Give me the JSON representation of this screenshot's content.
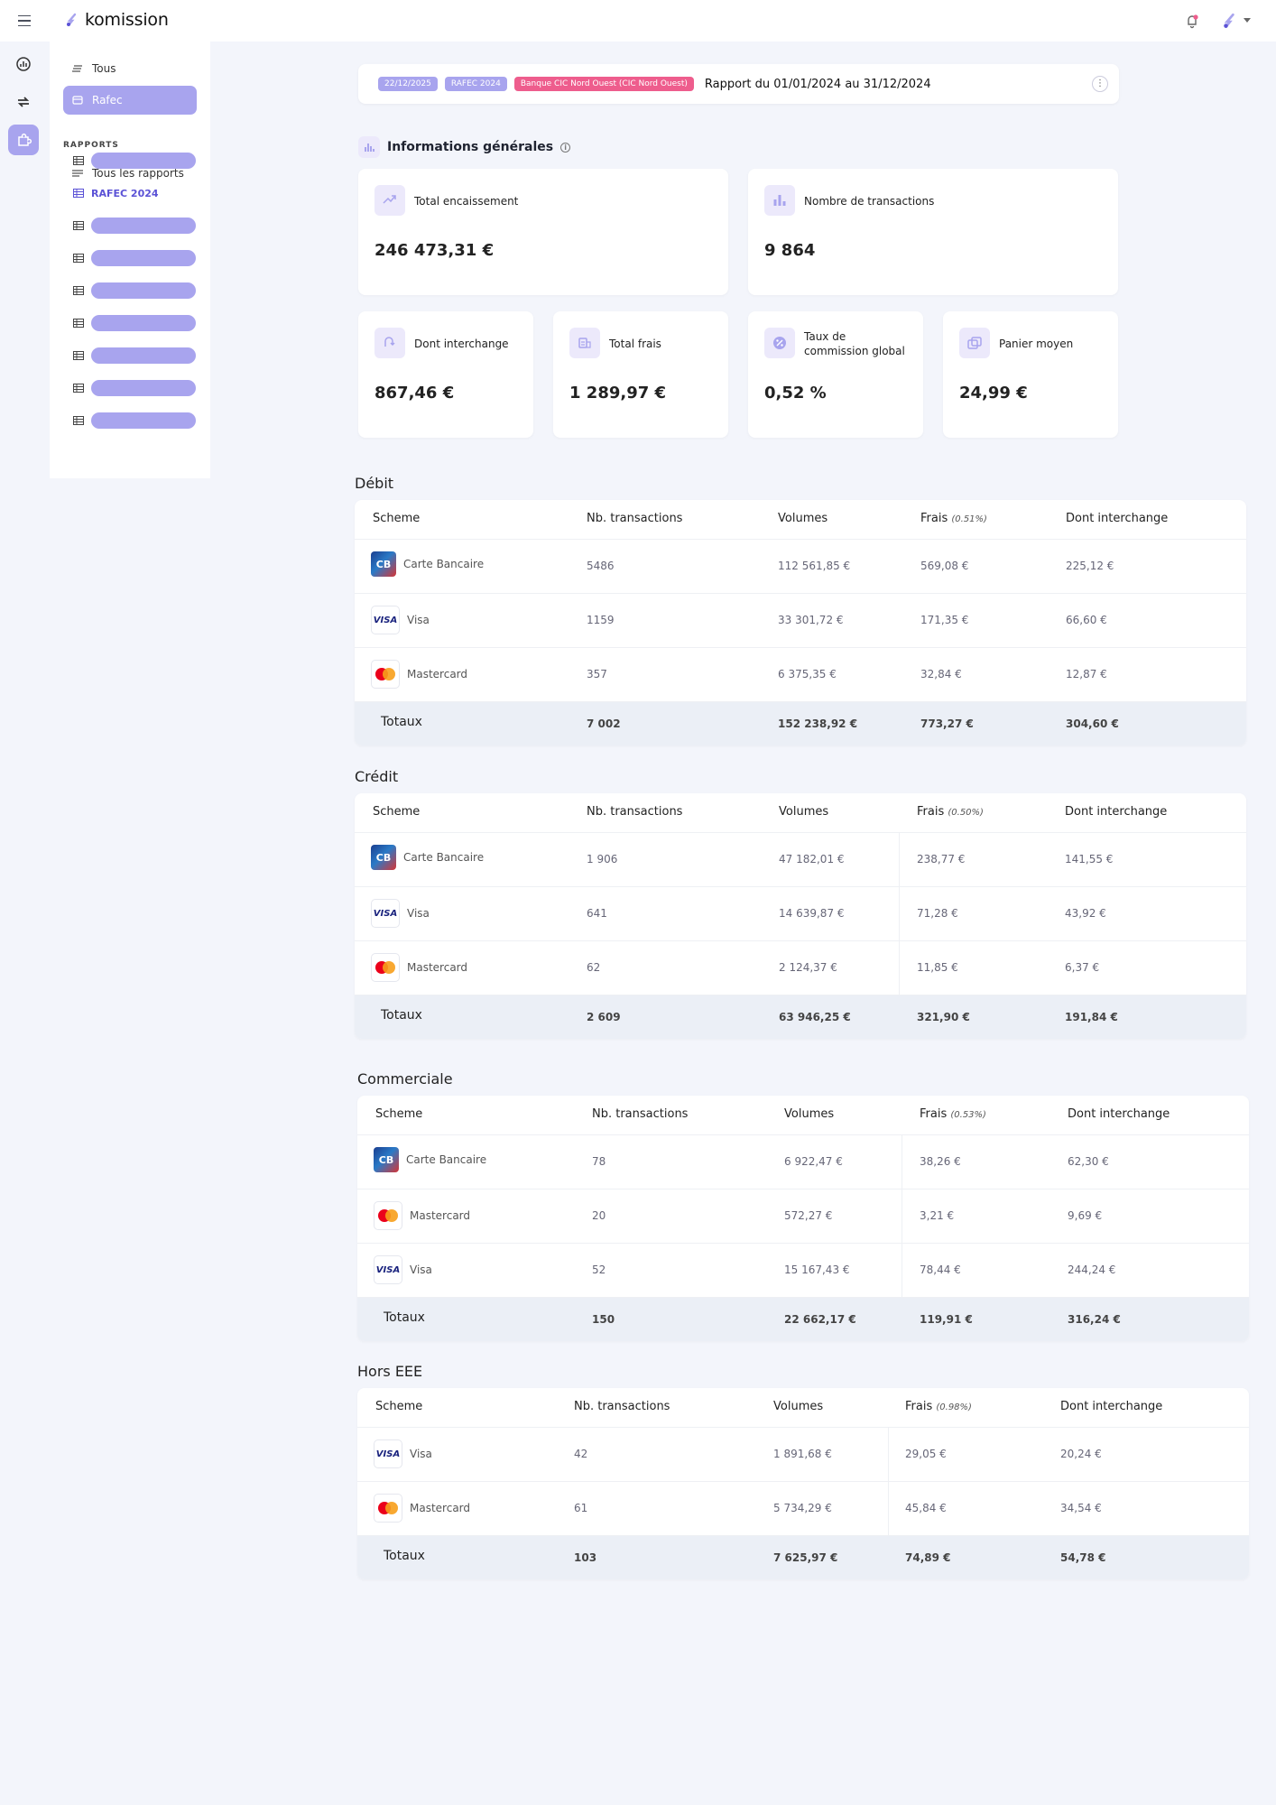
{
  "app": {
    "name": "komission"
  },
  "sidebar": {
    "items": [
      {
        "label": "Tous"
      },
      {
        "label": "Rafec"
      }
    ],
    "section_title": "RAPPORTS",
    "all_reports": "Tous les rapports",
    "active_report": "RAFEC 2024"
  },
  "header": {
    "badges": [
      "22/12/2025",
      "RAFEC 2024",
      "Banque CIC Nord Ouest (CIC Nord Ouest)"
    ],
    "title": "Rapport du 01/01/2024 au 31/12/2024",
    "menu_glyph": "⋮"
  },
  "general": {
    "title": "Informations générales",
    "info_glyph": "i",
    "cards": [
      {
        "label": "Total encaissement",
        "value": "246 473,31 €",
        "icon": "trend-up-icon"
      },
      {
        "label": "Nombre de transactions",
        "value": "9 864",
        "icon": "bar-chart-icon"
      },
      {
        "label": "Dont interchange",
        "value": "867,46 €",
        "icon": "exchange-icon"
      },
      {
        "label": "Total frais",
        "value": "1 289,97 €",
        "icon": "coins-icon"
      },
      {
        "label": "Taux de commission global",
        "value": "0,52 %",
        "icon": "percent-tag-icon"
      },
      {
        "label": "Panier moyen",
        "value": "24,99 €",
        "icon": "basket-icon"
      }
    ]
  },
  "tables": [
    {
      "title": "Débit",
      "headers": {
        "scheme": "Scheme",
        "nb": "Nb. transactions",
        "volumes": "Volumes",
        "frais": "Frais",
        "frais_rate": "(0.51%)",
        "interchange": "Dont interchange"
      },
      "rows": [
        {
          "scheme": "Carte Bancaire",
          "logo": "cb",
          "nb": "5486",
          "volumes": "112 561,85 €",
          "frais": "569,08 €",
          "interchange": "225,12 €"
        },
        {
          "scheme": "Visa",
          "logo": "visa",
          "nb": "1159",
          "volumes": "33 301,72 €",
          "frais": "171,35 €",
          "interchange": "66,60 €"
        },
        {
          "scheme": "Mastercard",
          "logo": "mc",
          "nb": "357",
          "volumes": "6 375,35 €",
          "frais": "32,84 €",
          "interchange": "12,87 €"
        }
      ],
      "totals": {
        "label": "Totaux",
        "nb": "7 002",
        "volumes": "152 238,92 €",
        "frais": "773,27 €",
        "interchange": "304,60 €"
      }
    },
    {
      "title": "Crédit",
      "headers": {
        "scheme": "Scheme",
        "nb": "Nb. transactions",
        "volumes": "Volumes",
        "frais": "Frais",
        "frais_rate": "(0.50%)",
        "interchange": "Dont interchange"
      },
      "rows": [
        {
          "scheme": "Carte Bancaire",
          "logo": "cb",
          "nb": "1 906",
          "volumes": "47 182,01 €",
          "frais": "238,77 €",
          "interchange": "141,55 €"
        },
        {
          "scheme": "Visa",
          "logo": "visa",
          "nb": "641",
          "volumes": "14 639,87 €",
          "frais": "71,28 €",
          "interchange": "43,92 €"
        },
        {
          "scheme": "Mastercard",
          "logo": "mc",
          "nb": "62",
          "volumes": "2 124,37 €",
          "frais": "11,85 €",
          "interchange": "6,37 €"
        }
      ],
      "totals": {
        "label": "Totaux",
        "nb": "2 609",
        "volumes": "63 946,25 €",
        "frais": "321,90 €",
        "interchange": "191,84 €"
      }
    },
    {
      "title": "Commerciale",
      "headers": {
        "scheme": "Scheme",
        "nb": "Nb. transactions",
        "volumes": "Volumes",
        "frais": "Frais",
        "frais_rate": "(0.53%)",
        "interchange": "Dont interchange"
      },
      "rows": [
        {
          "scheme": "Carte Bancaire",
          "logo": "cb",
          "nb": "78",
          "volumes": "6 922,47 €",
          "frais": "38,26 €",
          "interchange": "62,30 €"
        },
        {
          "scheme": "Mastercard",
          "logo": "mc",
          "nb": "20",
          "volumes": "572,27 €",
          "frais": "3,21 €",
          "interchange": "9,69 €"
        },
        {
          "scheme": "Visa",
          "logo": "visa",
          "nb": "52",
          "volumes": "15 167,43 €",
          "frais": "78,44 €",
          "interchange": "244,24 €"
        }
      ],
      "totals": {
        "label": "Totaux",
        "nb": "150",
        "volumes": "22 662,17 €",
        "frais": "119,91 €",
        "interchange": "316,24 €"
      }
    },
    {
      "title": "Hors EEE",
      "headers": {
        "scheme": "Scheme",
        "nb": "Nb. transactions",
        "volumes": "Volumes",
        "frais": "Frais",
        "frais_rate": "(0.98%)",
        "interchange": "Dont interchange"
      },
      "rows": [
        {
          "scheme": "Visa",
          "logo": "visa",
          "nb": "42",
          "volumes": "1 891,68 €",
          "frais": "29,05 €",
          "interchange": "20,24 €"
        },
        {
          "scheme": "Mastercard",
          "logo": "mc",
          "nb": "61",
          "volumes": "5 734,29 €",
          "frais": "45,84 €",
          "interchange": "34,54 €"
        }
      ],
      "totals": {
        "label": "Totaux",
        "nb": "103",
        "volumes": "7 625,97 €",
        "frais": "74,89 €",
        "interchange": "54,78 €"
      }
    }
  ],
  "logos": {
    "cb": "CB",
    "visa": "VISA"
  },
  "colors": {
    "accent": "#a8a4ee",
    "accent_dark": "#5b52d6",
    "badge_pink": "#ee5d8d",
    "bg": "#f3f5fb"
  }
}
